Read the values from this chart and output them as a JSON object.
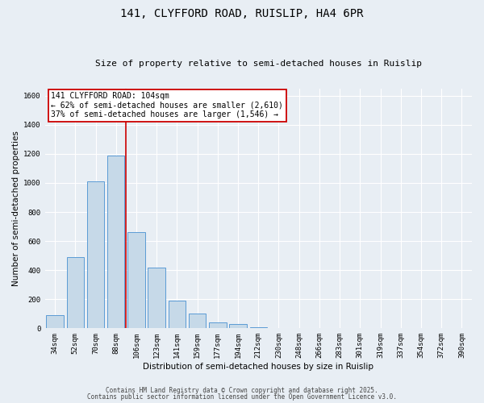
{
  "title1": "141, CLYFFORD ROAD, RUISLIP, HA4 6PR",
  "title2": "Size of property relative to semi-detached houses in Ruislip",
  "xlabel": "Distribution of semi-detached houses by size in Ruislip",
  "ylabel": "Number of semi-detached properties",
  "bar_labels": [
    "34sqm",
    "52sqm",
    "70sqm",
    "88sqm",
    "106sqm",
    "123sqm",
    "141sqm",
    "159sqm",
    "177sqm",
    "194sqm",
    "212sqm",
    "230sqm",
    "248sqm",
    "266sqm",
    "283sqm",
    "301sqm",
    "319sqm",
    "337sqm",
    "354sqm",
    "372sqm",
    "390sqm"
  ],
  "bar_values": [
    90,
    490,
    1010,
    1190,
    660,
    420,
    190,
    100,
    40,
    30,
    10,
    0,
    0,
    0,
    0,
    0,
    0,
    0,
    0,
    0,
    0
  ],
  "bar_color": "#c6d9e8",
  "bar_edge_color": "#5b9bd5",
  "background_color": "#e8eef4",
  "grid_color": "#ffffff",
  "redline_label": "141 CLYFFORD ROAD: 104sqm",
  "annotation_line1": "← 62% of semi-detached houses are smaller (2,610)",
  "annotation_line2": "37% of semi-detached houses are larger (1,546) →",
  "annotation_box_color": "#ffffff",
  "annotation_box_edge": "#cc0000",
  "redline_color": "#cc0000",
  "ylim": [
    0,
    1650
  ],
  "yticks": [
    0,
    200,
    400,
    600,
    800,
    1000,
    1200,
    1400,
    1600
  ],
  "footnote1": "Contains HM Land Registry data © Crown copyright and database right 2025.",
  "footnote2": "Contains public sector information licensed under the Open Government Licence v3.0.",
  "title1_fontsize": 10,
  "title2_fontsize": 8,
  "ylabel_fontsize": 7.5,
  "xlabel_fontsize": 7.5,
  "tick_fontsize": 6.5,
  "annotation_fontsize": 7.0,
  "footnote_fontsize": 5.5
}
